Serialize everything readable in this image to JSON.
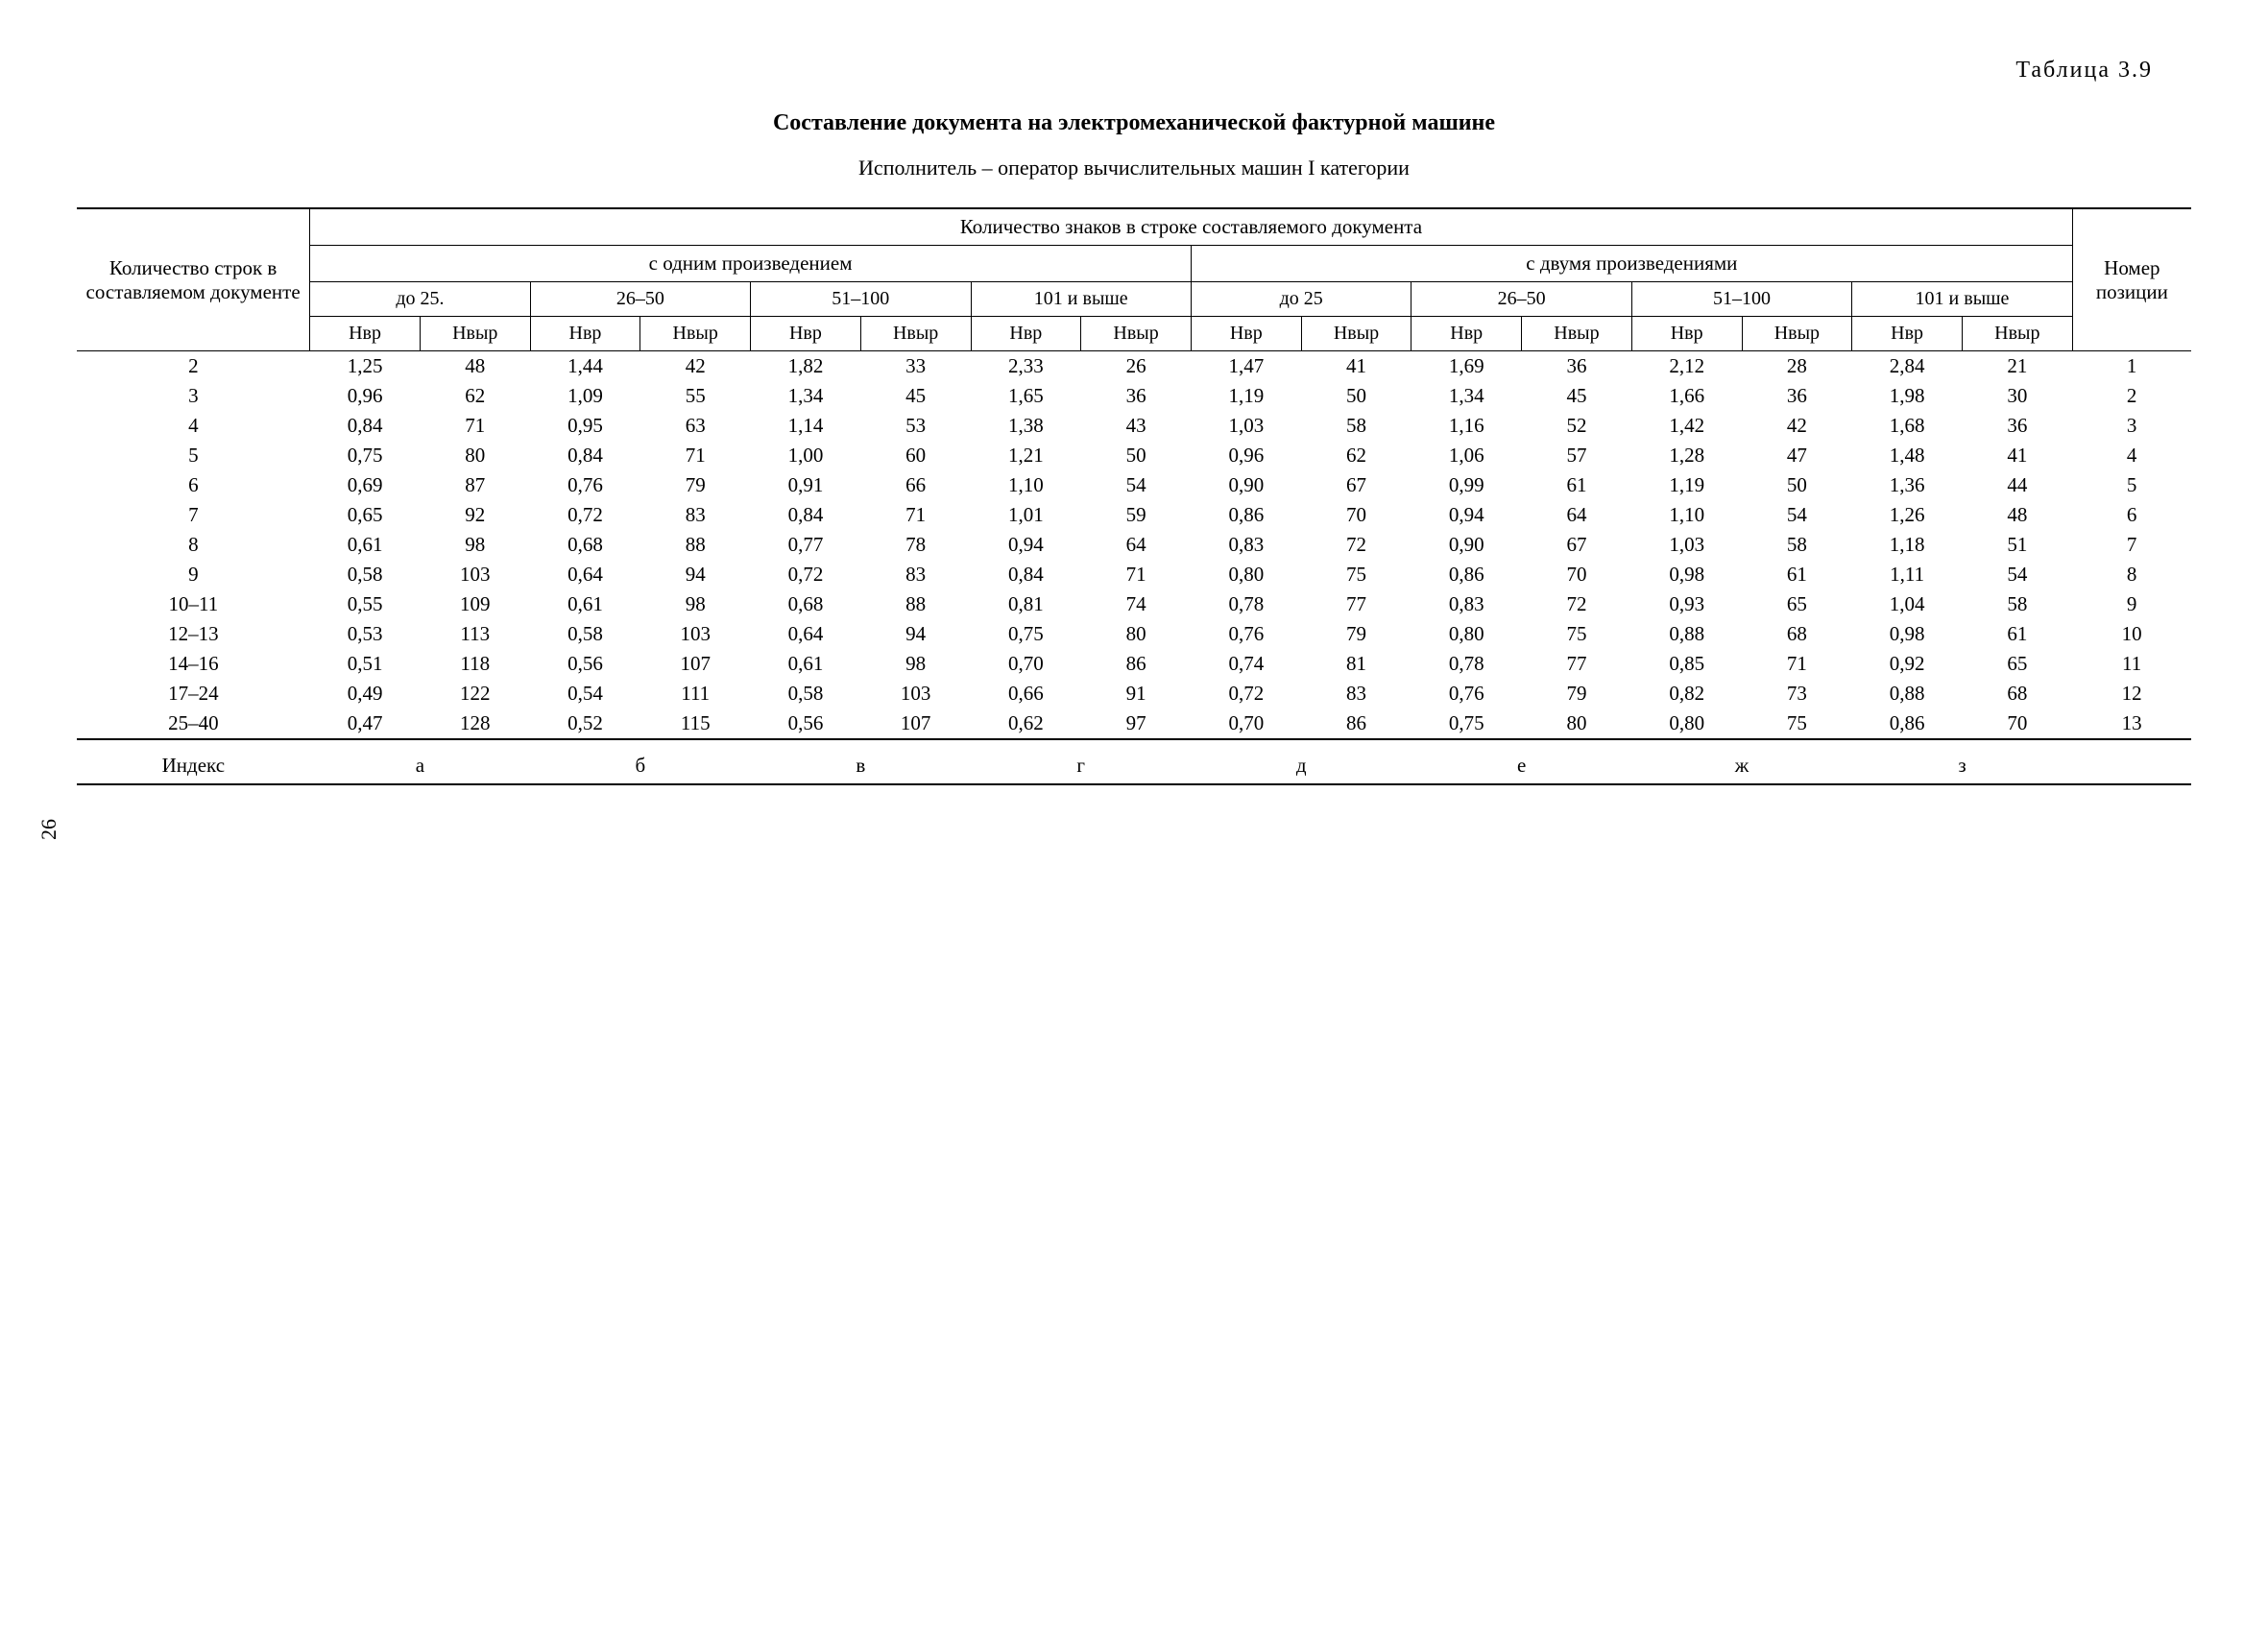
{
  "page_number": "26",
  "table_label": "Таблица 3.9",
  "title": "Составление документа на электромеханической фактурной машине",
  "subtitle": "Исполнитель – оператор вычислительных машин I категории",
  "headers": {
    "row_count": "Количество строк в составляемом документе",
    "chars": "Количество знаков в строке составляемого документа",
    "one_prod": "с одним произведением",
    "two_prod": "с двумя произведениями",
    "pos_num": "Номер позиции",
    "ranges": [
      "до 25.",
      "26–50",
      "51–100",
      "101 и выше",
      "до 25",
      "26–50",
      "51–100",
      "101 и выше"
    ],
    "hvr": "Нвр",
    "hvyr": "Нвыр",
    "index": "Индекс"
  },
  "rows": [
    {
      "label": "2",
      "v": [
        "1,25",
        "48",
        "1,44",
        "42",
        "1,82",
        "33",
        "2,33",
        "26",
        "1,47",
        "41",
        "1,69",
        "36",
        "2,12",
        "28",
        "2,84",
        "21"
      ],
      "pos": "1"
    },
    {
      "label": "3",
      "v": [
        "0,96",
        "62",
        "1,09",
        "55",
        "1,34",
        "45",
        "1,65",
        "36",
        "1,19",
        "50",
        "1,34",
        "45",
        "1,66",
        "36",
        "1,98",
        "30"
      ],
      "pos": "2"
    },
    {
      "label": "4",
      "v": [
        "0,84",
        "71",
        "0,95",
        "63",
        "1,14",
        "53",
        "1,38",
        "43",
        "1,03",
        "58",
        "1,16",
        "52",
        "1,42",
        "42",
        "1,68",
        "36"
      ],
      "pos": "3"
    },
    {
      "label": "5",
      "v": [
        "0,75",
        "80",
        "0,84",
        "71",
        "1,00",
        "60",
        "1,21",
        "50",
        "0,96",
        "62",
        "1,06",
        "57",
        "1,28",
        "47",
        "1,48",
        "41"
      ],
      "pos": "4"
    },
    {
      "label": "6",
      "v": [
        "0,69",
        "87",
        "0,76",
        "79",
        "0,91",
        "66",
        "1,10",
        "54",
        "0,90",
        "67",
        "0,99",
        "61",
        "1,19",
        "50",
        "1,36",
        "44"
      ],
      "pos": "5"
    },
    {
      "label": "7",
      "v": [
        "0,65",
        "92",
        "0,72",
        "83",
        "0,84",
        "71",
        "1,01",
        "59",
        "0,86",
        "70",
        "0,94",
        "64",
        "1,10",
        "54",
        "1,26",
        "48"
      ],
      "pos": "6"
    },
    {
      "label": "8",
      "v": [
        "0,61",
        "98",
        "0,68",
        "88",
        "0,77",
        "78",
        "0,94",
        "64",
        "0,83",
        "72",
        "0,90",
        "67",
        "1,03",
        "58",
        "1,18",
        "51"
      ],
      "pos": "7"
    },
    {
      "label": "9",
      "v": [
        "0,58",
        "103",
        "0,64",
        "94",
        "0,72",
        "83",
        "0,84",
        "71",
        "0,80",
        "75",
        "0,86",
        "70",
        "0,98",
        "61",
        "1,11",
        "54"
      ],
      "pos": "8"
    },
    {
      "label": "10–11",
      "v": [
        "0,55",
        "109",
        "0,61",
        "98",
        "0,68",
        "88",
        "0,81",
        "74",
        "0,78",
        "77",
        "0,83",
        "72",
        "0,93",
        "65",
        "1,04",
        "58"
      ],
      "pos": "9"
    },
    {
      "label": "12–13",
      "v": [
        "0,53",
        "113",
        "0,58",
        "103",
        "0,64",
        "94",
        "0,75",
        "80",
        "0,76",
        "79",
        "0,80",
        "75",
        "0,88",
        "68",
        "0,98",
        "61"
      ],
      "pos": "10"
    },
    {
      "label": "14–16",
      "v": [
        "0,51",
        "118",
        "0,56",
        "107",
        "0,61",
        "98",
        "0,70",
        "86",
        "0,74",
        "81",
        "0,78",
        "77",
        "0,85",
        "71",
        "0,92",
        "65"
      ],
      "pos": "11"
    },
    {
      "label": "17–24",
      "v": [
        "0,49",
        "122",
        "0,54",
        "111",
        "0,58",
        "103",
        "0,66",
        "91",
        "0,72",
        "83",
        "0,76",
        "79",
        "0,82",
        "73",
        "0,88",
        "68"
      ],
      "pos": "12"
    },
    {
      "label": "25–40",
      "v": [
        "0,47",
        "128",
        "0,52",
        "115",
        "0,56",
        "107",
        "0,62",
        "97",
        "0,70",
        "86",
        "0,75",
        "80",
        "0,80",
        "75",
        "0,86",
        "70"
      ],
      "pos": "13"
    }
  ],
  "index_letters": [
    "а",
    "б",
    "в",
    "г",
    "д",
    "е",
    "ж",
    "з"
  ]
}
